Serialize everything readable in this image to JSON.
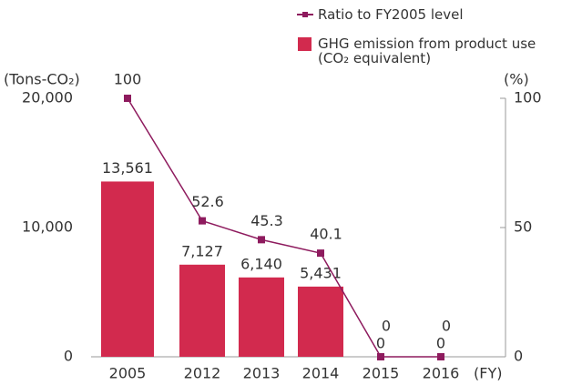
{
  "chart_data": {
    "type": "bar_line",
    "categories": [
      "2005",
      "2012",
      "2013",
      "2014",
      "2015",
      "2016"
    ],
    "series": [
      {
        "name": "GHG emission from product use (CO₂ equivalent)",
        "type": "bar",
        "color": "#d22a4e",
        "axis": "y",
        "values": [
          13561,
          7127,
          6140,
          5431,
          0,
          0
        ],
        "value_labels": [
          "13,561",
          "7,127",
          "6,140",
          "5,431",
          "0",
          "0"
        ]
      },
      {
        "name": "Ratio to FY2005 level",
        "type": "line",
        "color": "#8e1b5e",
        "axis": "y2",
        "values": [
          100,
          52.6,
          45.3,
          40.1,
          0,
          0
        ]
      }
    ],
    "y_label": "(Tons-CO₂)",
    "y2_label": "(%)",
    "x_label": "(FY)",
    "ylim": [
      0,
      20000
    ],
    "yticks": [
      0,
      {
        "value": 10000,
        "label": "10,000"
      },
      {
        "value": 20000,
        "label": "20,000"
      }
    ],
    "y2lim": [
      0,
      100
    ],
    "y2ticks": [
      0,
      50,
      100
    ],
    "legend": "top-right"
  }
}
